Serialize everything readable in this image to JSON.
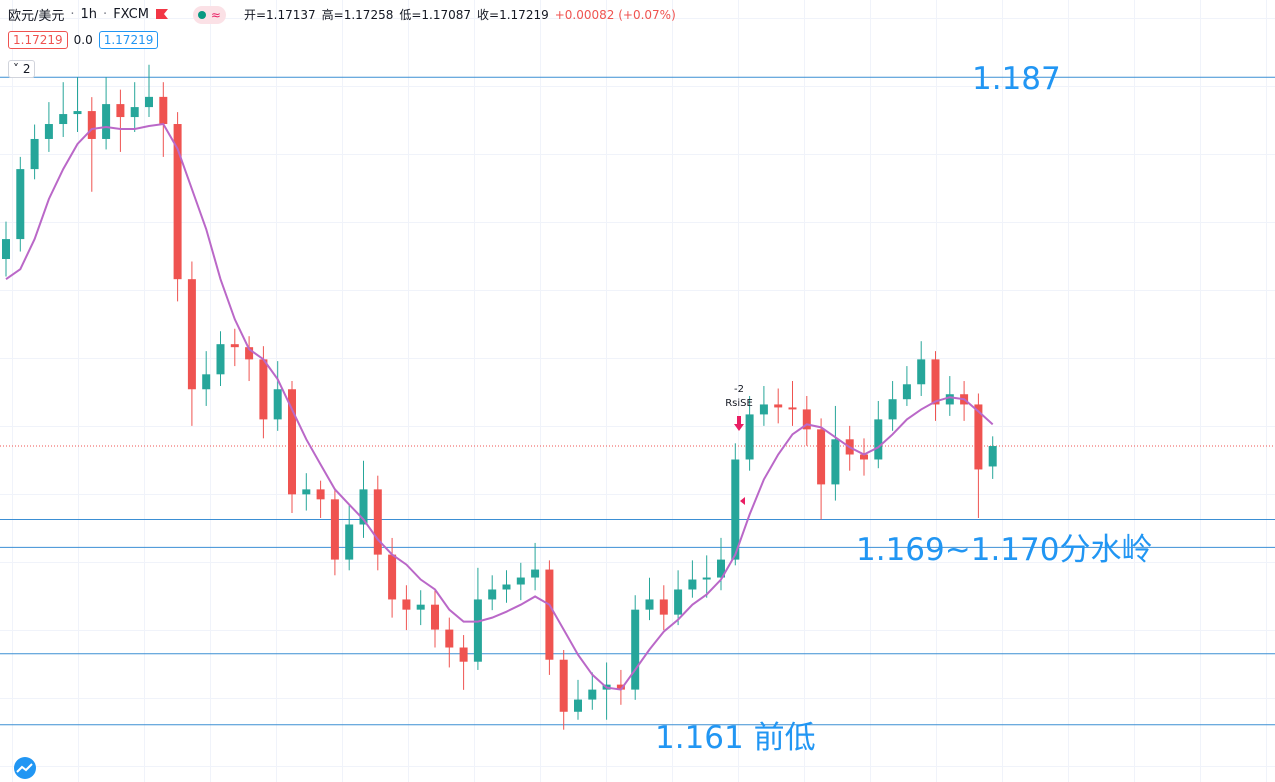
{
  "toolbar": {
    "symbol": "欧元/美元",
    "interval": "1h",
    "exchange": "FXCM",
    "ohlc_legend": [
      "开=1.17137",
      "高=1.17258",
      "低=1.17087",
      "收=1.17219",
      "+0.00082 (+0.07%)"
    ],
    "indicator_values": [
      "1.17219",
      "0.0",
      "1.17219"
    ],
    "collapse_count": "2"
  },
  "chart_data": {
    "type": "candlestick",
    "up_color": "#26a69a",
    "down_color": "#ef5350",
    "ylim": [
      1.1587,
      1.1901
    ],
    "open": [
      1.1797,
      1.1805,
      1.18331,
      1.18452,
      1.18512,
      1.18552,
      1.18564,
      1.18452,
      1.18592,
      1.1854,
      1.1858,
      1.18621,
      1.18512,
      1.17889,
      1.17447,
      1.17507,
      1.17628,
      1.17616,
      1.17567,
      1.17326,
      1.17447,
      1.17025,
      1.17045,
      1.17005,
      1.16763,
      1.16904,
      1.17045,
      1.16783,
      1.16603,
      1.16562,
      1.16582,
      1.16482,
      1.1641,
      1.16353,
      1.16603,
      1.16643,
      1.16663,
      1.16691,
      1.16723,
      1.16361,
      1.16152,
      1.16201,
      1.16241,
      1.16261,
      1.16241,
      1.16562,
      1.16603,
      1.16542,
      1.16643,
      1.16683,
      1.16691,
      1.16763,
      1.17165,
      1.17346,
      1.17386,
      1.17374,
      1.17366,
      1.17286,
      1.17065,
      1.17246,
      1.17185,
      1.17165,
      1.17326,
      1.17407,
      1.17467,
      1.17567,
      1.17386,
      1.17427,
      1.17386,
      1.17137
    ],
    "high": [
      1.1812,
      1.1838,
      1.1851,
      1.186,
      1.1868,
      1.187,
      1.1862,
      1.187,
      1.1865,
      1.1868,
      1.1875,
      1.1868,
      1.1856,
      1.1796,
      1.176,
      1.1768,
      1.1769,
      1.1766,
      1.1762,
      1.1756,
      1.1748,
      1.1711,
      1.1708,
      1.1705,
      1.1698,
      1.1716,
      1.171,
      1.1685,
      1.1666,
      1.1664,
      1.1664,
      1.1653,
      1.1646,
      1.1673,
      1.167,
      1.1672,
      1.1675,
      1.1683,
      1.1676,
      1.164,
      1.1628,
      1.1631,
      1.1635,
      1.1632,
      1.1662,
      1.1669,
      1.1666,
      1.1672,
      1.1676,
      1.1678,
      1.1685,
      1.1723,
      1.1742,
      1.1746,
      1.1745,
      1.1748,
      1.1742,
      1.1733,
      1.1738,
      1.173,
      1.1725,
      1.174,
      1.1748,
      1.1754,
      1.1764,
      1.176,
      1.175,
      1.1748,
      1.1743,
      1.17258
    ],
    "low": [
      1.179,
      1.18,
      1.1829,
      1.184,
      1.1846,
      1.1848,
      1.1824,
      1.1841,
      1.184,
      1.1848,
      1.1854,
      1.1838,
      1.178,
      1.173,
      1.1738,
      1.1746,
      1.1754,
      1.1748,
      1.1725,
      1.1728,
      1.1695,
      1.1696,
      1.1693,
      1.167,
      1.1672,
      1.1685,
      1.1672,
      1.1653,
      1.1648,
      1.165,
      1.1641,
      1.1633,
      1.1624,
      1.1632,
      1.1656,
      1.1659,
      1.166,
      1.1664,
      1.163,
      1.1608,
      1.1612,
      1.1616,
      1.1612,
      1.1618,
      1.162,
      1.1652,
      1.1648,
      1.165,
      1.1661,
      1.1661,
      1.1664,
      1.1674,
      1.1712,
      1.173,
      1.1731,
      1.173,
      1.1722,
      1.16924,
      1.17,
      1.1712,
      1.171,
      1.1713,
      1.1728,
      1.1738,
      1.1742,
      1.1732,
      1.1734,
      1.1732,
      1.1693,
      1.17087
    ],
    "close": [
      1.1805,
      1.18331,
      1.18452,
      1.18512,
      1.18552,
      1.18564,
      1.18452,
      1.18592,
      1.1854,
      1.1858,
      1.18621,
      1.18512,
      1.17889,
      1.17447,
      1.17507,
      1.17628,
      1.17616,
      1.17567,
      1.17326,
      1.17447,
      1.17025,
      1.17045,
      1.17005,
      1.16763,
      1.16904,
      1.17045,
      1.16783,
      1.16603,
      1.16562,
      1.16582,
      1.16482,
      1.1641,
      1.16353,
      1.16603,
      1.16643,
      1.16663,
      1.16691,
      1.16723,
      1.16361,
      1.16152,
      1.16201,
      1.16241,
      1.16261,
      1.16241,
      1.16562,
      1.16603,
      1.16542,
      1.16643,
      1.16683,
      1.16691,
      1.16763,
      1.17165,
      1.17346,
      1.17386,
      1.17374,
      1.17366,
      1.17286,
      1.17065,
      1.17246,
      1.17185,
      1.17165,
      1.17326,
      1.17407,
      1.17467,
      1.17567,
      1.17386,
      1.17427,
      1.17386,
      1.17125,
      1.17219
    ],
    "ma": {
      "color": "#ba68c8",
      "values": [
        1.17889,
        1.17929,
        1.1805,
        1.18211,
        1.18331,
        1.18432,
        1.18492,
        1.185,
        1.18492,
        1.18492,
        1.18504,
        1.18512,
        1.18412,
        1.18251,
        1.1809,
        1.17889,
        1.17728,
        1.17608,
        1.17567,
        1.17487,
        1.17366,
        1.17246,
        1.17145,
        1.17045,
        1.16984,
        1.16924,
        1.16844,
        1.16783,
        1.16743,
        1.16683,
        1.16643,
        1.16562,
        1.16514,
        1.16514,
        1.1653,
        1.16554,
        1.16582,
        1.16615,
        1.16582,
        1.16482,
        1.16381,
        1.16301,
        1.16249,
        1.16241,
        1.16321,
        1.16402,
        1.16474,
        1.16522,
        1.16582,
        1.16623,
        1.16683,
        1.16783,
        1.16944,
        1.17085,
        1.17185,
        1.17266,
        1.17306,
        1.17294,
        1.17254,
        1.17214,
        1.17185,
        1.17214,
        1.17266,
        1.17326,
        1.17366,
        1.17398,
        1.17415,
        1.17407,
        1.17358,
        1.17306
      ]
    },
    "levels": {
      "color": "#3b8fd4",
      "values": [
        1.187,
        1.16924,
        1.16812,
        1.16385,
        1.161
      ]
    },
    "last_price": {
      "value": 1.17219,
      "color": "#ef5350"
    },
    "annotations": [
      "1.187",
      "1.169~1.170分水岭",
      "1.161 前低"
    ],
    "signal": {
      "count": "-2",
      "label": "RsiSE"
    }
  }
}
